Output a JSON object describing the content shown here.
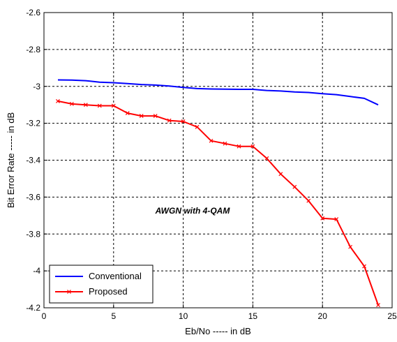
{
  "chart_data": {
    "type": "line",
    "title": "",
    "xlabel": "Eb/No ----- in dB",
    "ylabel": "Bit Error Rate ----- in dB",
    "xlim": [
      0,
      25
    ],
    "ylim": [
      -4.2,
      -2.6
    ],
    "xticks": [
      0,
      5,
      10,
      15,
      20,
      25
    ],
    "yticks": [
      -2.6,
      -2.8,
      -3,
      -3.2,
      -3.4,
      -3.6,
      -3.8,
      -4,
      -4.2
    ],
    "grid": true,
    "legend": "bottom-left",
    "annotations": [
      {
        "text": "AWGN with 4-QAM",
        "x": 8.0,
        "y": -3.69
      }
    ],
    "series": [
      {
        "name": "Conventional",
        "color": "#0000ff",
        "marker": "none",
        "x": [
          1,
          2,
          3,
          4,
          5,
          6,
          7,
          8,
          9,
          10,
          11,
          12,
          13,
          14,
          15,
          16,
          17,
          18,
          19,
          20,
          21,
          22,
          23,
          24
        ],
        "y": [
          -2.965,
          -2.966,
          -2.969,
          -2.977,
          -2.98,
          -2.985,
          -2.99,
          -2.993,
          -2.998,
          -3.006,
          -3.012,
          -3.014,
          -3.015,
          -3.016,
          -3.016,
          -3.022,
          -3.025,
          -3.03,
          -3.033,
          -3.04,
          -3.045,
          -3.055,
          -3.065,
          -3.1
        ]
      },
      {
        "name": "Proposed",
        "color": "#ff0000",
        "marker": "x",
        "x": [
          1,
          2,
          3,
          4,
          5,
          6,
          7,
          8,
          9,
          10,
          11,
          12,
          13,
          14,
          15,
          16,
          17,
          18,
          19,
          20,
          21,
          22,
          23,
          24
        ],
        "y": [
          -3.08,
          -3.095,
          -3.1,
          -3.105,
          -3.105,
          -3.145,
          -3.16,
          -3.16,
          -3.185,
          -3.19,
          -3.22,
          -3.295,
          -3.31,
          -3.325,
          -3.325,
          -3.39,
          -3.475,
          -3.545,
          -3.62,
          -3.715,
          -3.72,
          -3.87,
          -3.975,
          -4.185
        ]
      }
    ]
  }
}
